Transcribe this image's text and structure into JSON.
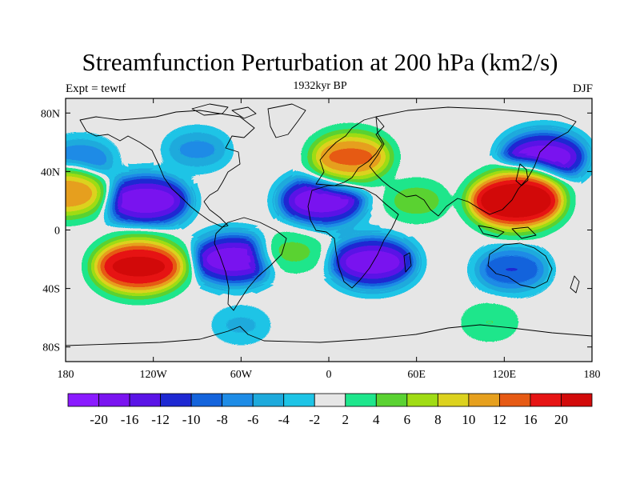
{
  "title": "Streamfunction Perturbation at 200 hPa (km2/s)",
  "subtitle_left": "Expt = tewtf",
  "subtitle_center": "1932kyr BP",
  "subtitle_right": "DJF",
  "y_ticks": [
    "80N",
    "40N",
    "0",
    "40S",
    "80S"
  ],
  "x_ticks": [
    "180",
    "120W",
    "60W",
    "0",
    "60E",
    "120E",
    "180"
  ],
  "colorbar": {
    "labels": [
      "-20",
      "-16",
      "-12",
      "-10",
      "-8",
      "-6",
      "-4",
      "-2",
      "2",
      "4",
      "6",
      "8",
      "10",
      "12",
      "16",
      "20"
    ],
    "colors": [
      "#8a1aff",
      "#7a14f0",
      "#5a14e6",
      "#1e28d2",
      "#1464dc",
      "#1e8ce6",
      "#1eaadc",
      "#1ec4e6",
      "#e6e6e6",
      "#1ee68c",
      "#5ad232",
      "#a0dc14",
      "#dcd21e",
      "#e6a01e",
      "#e65a14",
      "#e61414",
      "#d20a0a"
    ]
  },
  "chart_data": {
    "type": "heatmap",
    "title": "Streamfunction Perturbation at 200 hPa (km2/s)",
    "projection": "cylindrical-equidistant",
    "lon_range": [
      -180,
      180
    ],
    "lat_range": [
      -90,
      90
    ],
    "units": "km2/s",
    "contour_levels": [
      -20,
      -16,
      -12,
      -10,
      -8,
      -6,
      -4,
      -2,
      2,
      4,
      6,
      8,
      10,
      12,
      16,
      20
    ],
    "features": [
      {
        "lon": -125,
        "lat": 20,
        "value": -19
      },
      {
        "lon": -65,
        "lat": -20,
        "value": -18
      },
      {
        "lon": -5,
        "lat": 20,
        "value": -18
      },
      {
        "lon": 30,
        "lat": -22,
        "value": -18
      },
      {
        "lon": 147,
        "lat": 50,
        "value": -18
      },
      {
        "lon": 125,
        "lat": -27,
        "value": -12
      },
      {
        "lon": -90,
        "lat": 55,
        "value": -8
      },
      {
        "lon": -170,
        "lat": 48,
        "value": -10
      },
      {
        "lon": -60,
        "lat": -65,
        "value": -5
      },
      {
        "lon": 128,
        "lat": 20,
        "value": 22
      },
      {
        "lon": -130,
        "lat": -25,
        "value": 20
      },
      {
        "lon": 15,
        "lat": 50,
        "value": 15
      },
      {
        "lon": -180,
        "lat": 25,
        "value": 14
      },
      {
        "lon": 60,
        "lat": 20,
        "value": 6
      },
      {
        "lon": 110,
        "lat": -63,
        "value": 4
      },
      {
        "lon": -25,
        "lat": -15,
        "value": 5
      }
    ]
  }
}
